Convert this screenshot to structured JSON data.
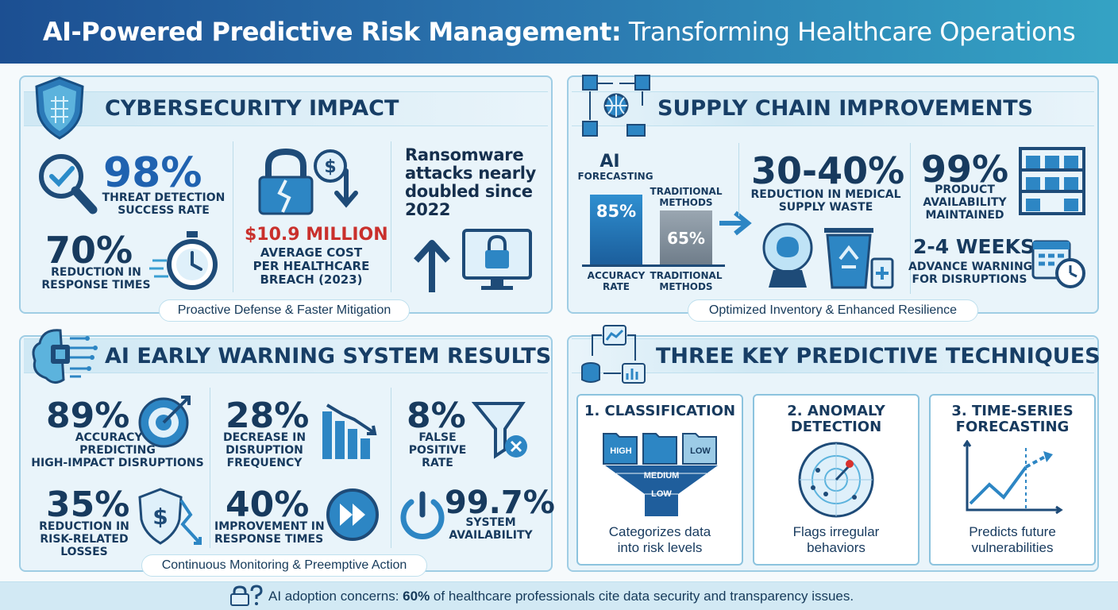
{
  "header": {
    "title_bold": "AI-Powered Predictive Risk Management:",
    "title_rest": "Transforming Healthcare Operations"
  },
  "cyber": {
    "title": "CYBERSECURITY IMPACT",
    "threat": {
      "value": "98%",
      "label1": "THREAT DETECTION",
      "label2": "SUCCESS RATE"
    },
    "response": {
      "value": "70%",
      "label1": "REDUCTION IN",
      "label2": "RESPONSE TIMES"
    },
    "breach": {
      "value": "$10.9 MILLION",
      "label1": "AVERAGE COST",
      "label2": "PER HEALTHCARE",
      "label3": "BREACH (2023)"
    },
    "ransom": {
      "line1": "Ransomware",
      "line2": "attacks nearly",
      "line3": "doubled since",
      "line4": "2022"
    },
    "footer": "Proactive Defense & Faster Mitigation"
  },
  "supply": {
    "title": "SUPPLY CHAIN IMPROVEMENTS",
    "ai_label": "AI",
    "forecasting_label": "FORECASTING",
    "traditional_label1": "TRADITIONAL",
    "traditional_label2": "METHODS",
    "ai_value": "85%",
    "trad_value": "65%",
    "axis_ai1": "ACCURACY",
    "axis_ai2": "RATE",
    "axis_trad1": "TRADITIONAL",
    "axis_trad2": "METHODS",
    "waste": {
      "value": "30-40%",
      "label1": "REDUCTION IN MEDICAL",
      "label2": "SUPPLY WASTE"
    },
    "availability": {
      "value": "99%",
      "label1": "PRODUCT",
      "label2": "AVAILABILITY",
      "label3": "MAINTAINED"
    },
    "warning": {
      "value": "2-4 WEEKS",
      "label1": "ADVANCE WARNING",
      "label2": "FOR DISRUPTIONS"
    },
    "footer": "Optimized Inventory & Enhanced Resilience"
  },
  "chart_data": {
    "type": "bar",
    "categories": [
      "AI FORECASTING",
      "TRADITIONAL METHODS"
    ],
    "values": [
      85,
      65
    ],
    "title": "",
    "xlabel": "",
    "ylabel": "",
    "ylim": [
      0,
      100
    ]
  },
  "early": {
    "title": "AI EARLY WARNING SYSTEM RESULTS",
    "accuracy": {
      "value": "89%",
      "label1": "ACCURACY IN",
      "label2": "PREDICTING",
      "label3": "HIGH-IMPACT DISRUPTIONS"
    },
    "decrease": {
      "value": "28%",
      "label1": "DECREASE IN",
      "label2": "DISRUPTION",
      "label3": "FREQUENCY"
    },
    "falsepos": {
      "value": "8%",
      "label1": "FALSE",
      "label2": "POSITIVE",
      "label3": "RATE"
    },
    "losses": {
      "value": "35%",
      "label1": "REDUCTION IN",
      "label2": "RISK-RELATED",
      "label3": "LOSSES"
    },
    "improve": {
      "value": "40%",
      "label1": "IMPROVEMENT IN",
      "label2": "RESPONSE TIMES"
    },
    "uptime": {
      "value": "99.7%",
      "label1": "SYSTEM",
      "label2": "AVAILABILITY"
    },
    "footer": "Continuous Monitoring & Preemptive Action"
  },
  "tech": {
    "title": "THREE KEY PREDICTIVE TECHNIQUES",
    "c1": {
      "title": "1. CLASSIFICATION",
      "desc1": "Categorizes data",
      "desc2": "into risk levels",
      "high": "HIGH",
      "low": "LOW",
      "medium": "MEDIUM",
      "low2": "LOW"
    },
    "c2": {
      "title1": "2. ANOMALY",
      "title2": "DETECTION",
      "desc1": "Flags irregular",
      "desc2": "behaviors"
    },
    "c3": {
      "title1": "3. TIME-SERIES",
      "title2": "FORECASTING",
      "desc1": "Predicts future",
      "desc2": "vulnerabilities"
    }
  },
  "footer": {
    "pre": "AI adoption concerns: ",
    "bold": "60%",
    "post": " of healthcare professionals cite data security and transparency issues."
  },
  "colors": {
    "accent": "#1f62b0",
    "header_start": "#1c4f92",
    "header_end": "#34a3c4",
    "alert_red": "#c9302c"
  }
}
